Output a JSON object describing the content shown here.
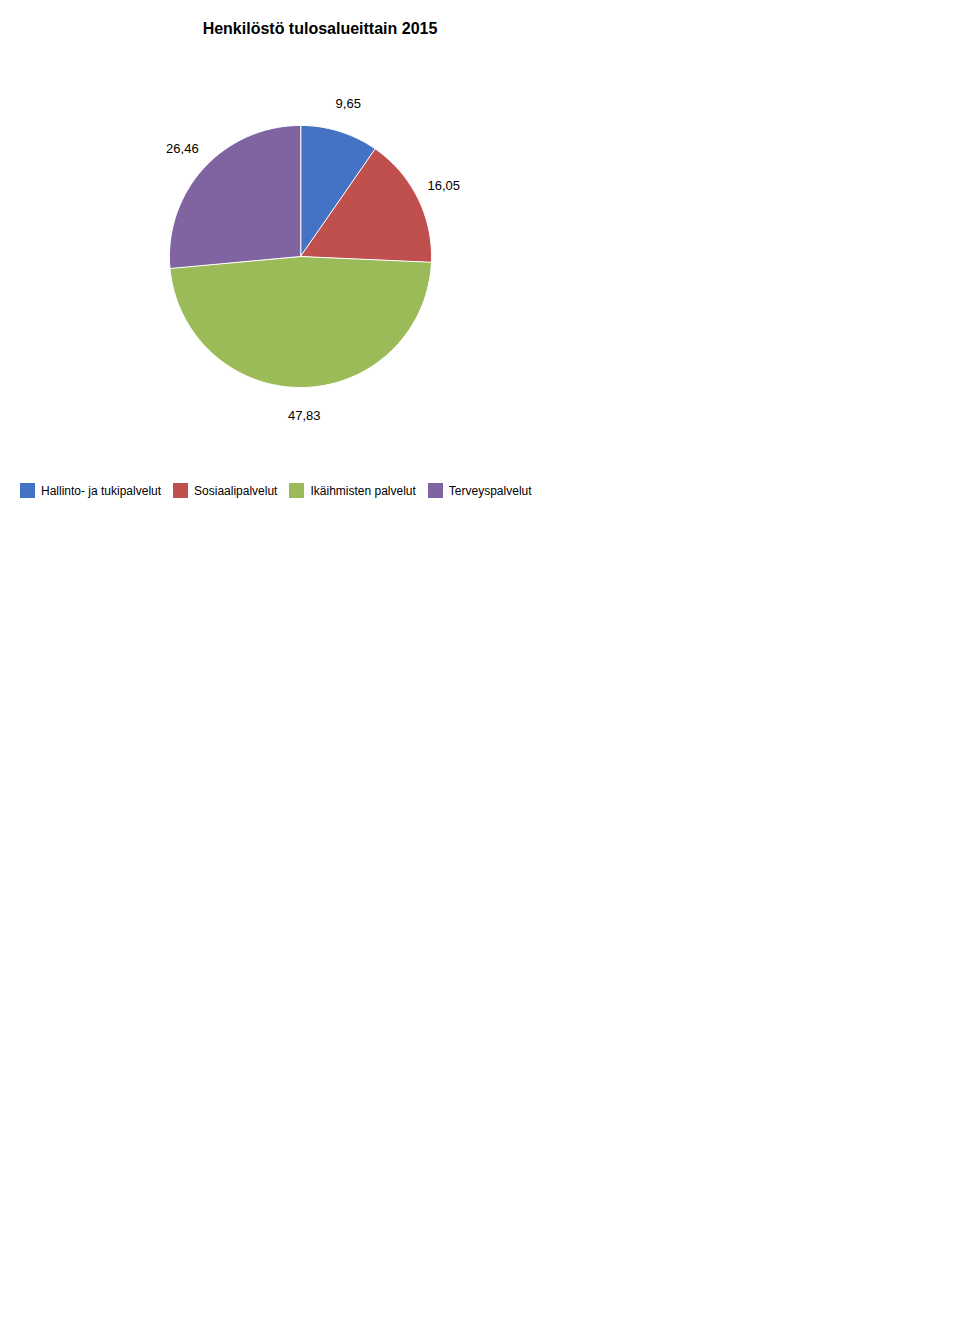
{
  "chart_data": {
    "type": "pie",
    "title": "Henkilöstö tulosalueittain 2015",
    "categories": [
      "Hallinto- ja tukipalvelut",
      "Sosiaalipalvelut",
      "Ikäihmisten palvelut",
      "Terveyspalvelut"
    ],
    "values": [
      9.65,
      16.05,
      47.83,
      26.46
    ],
    "value_labels": [
      "9,65",
      "16,05",
      "47,83",
      "26,46"
    ],
    "colors": [
      "#4472C4",
      "#C0504D",
      "#9BBB59",
      "#8064A2"
    ],
    "data_labels": true,
    "legend": "bottom"
  }
}
